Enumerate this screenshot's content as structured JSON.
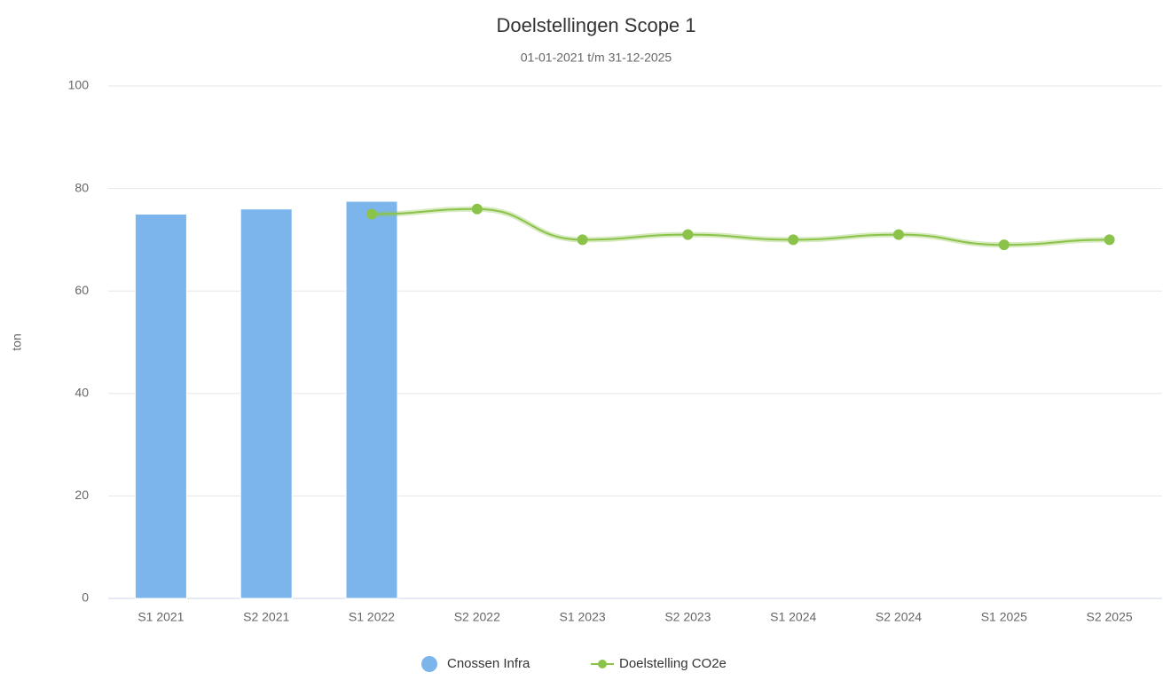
{
  "chart_data": {
    "type": "combo",
    "title": "Doelstellingen Scope 1",
    "subtitle": "01-01-2021 t/m 31-12-2025",
    "y_label": "ton",
    "categories": [
      "S1 2021",
      "S2 2021",
      "S1 2022",
      "S2 2022",
      "S1 2023",
      "S2 2023",
      "S1 2024",
      "S2 2024",
      "S1 2025",
      "S2 2025"
    ],
    "series": [
      {
        "name": "Cnossen Infra",
        "type": "bar",
        "color": "#7cb5ec",
        "values": [
          75,
          76,
          77.5,
          null,
          null,
          null,
          null,
          null,
          null,
          null
        ]
      },
      {
        "name": "Doelstelling CO2e",
        "type": "line",
        "color": "#8bc34a",
        "values": [
          null,
          null,
          75,
          76,
          70,
          71,
          70,
          71,
          69,
          70
        ]
      }
    ],
    "ylim": [
      0,
      100
    ],
    "yticks": [
      0,
      20,
      40,
      60,
      80,
      100
    ],
    "grid": true,
    "legend": "bottom"
  }
}
